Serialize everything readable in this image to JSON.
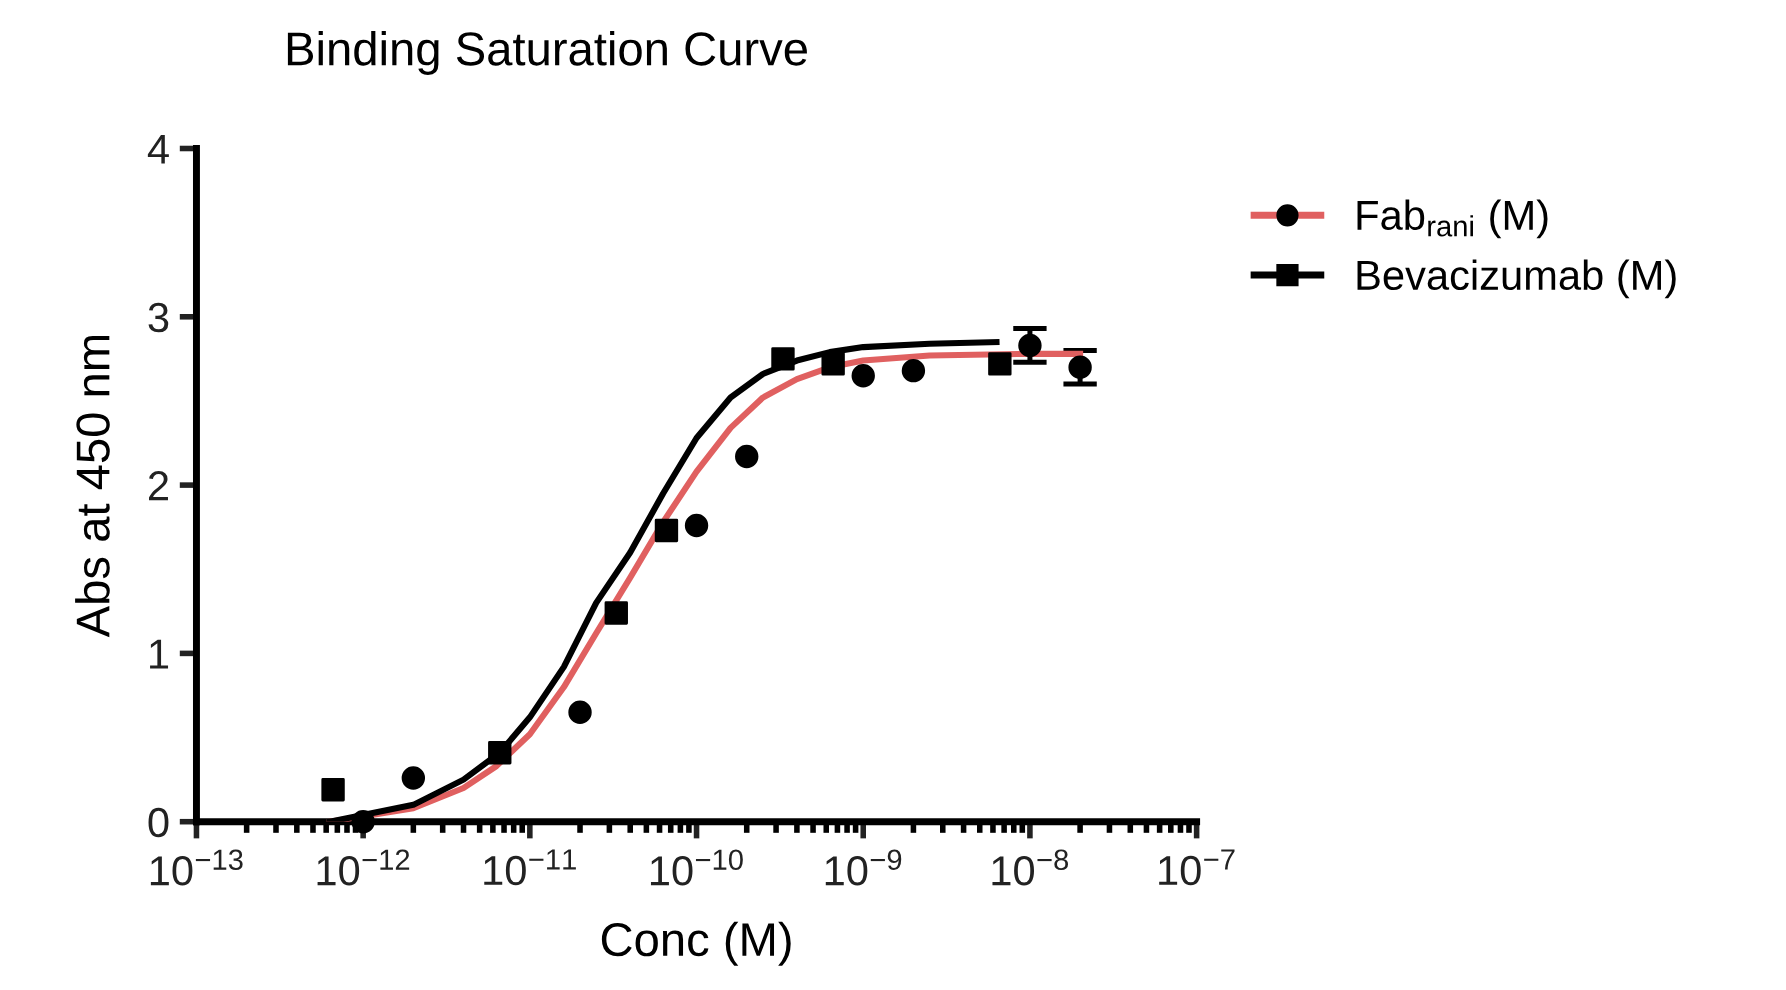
{
  "chart_data": {
    "type": "scatter",
    "title": "Binding Saturation Curve",
    "xlabel": "Conc (M)",
    "ylabel": "Abs at 450 nm",
    "log": "x",
    "xlim": [
      1e-13,
      1e-07
    ],
    "xticks": [
      {
        "value": 1e-13,
        "label": "10$^{−13}$"
      },
      {
        "value": 1e-12,
        "label": "10$^{−12}$"
      },
      {
        "value": 1e-11,
        "label": "10$^{−11}$"
      },
      {
        "value": 1e-10,
        "label": "10$^{−10}$"
      },
      {
        "value": 1e-09,
        "label": "10$^{−9}$"
      },
      {
        "value": 1e-08,
        "label": "10$^{−8}$"
      },
      {
        "value": 1e-07,
        "label": "10$^{−7}$"
      }
    ],
    "ylim": [
      0,
      4
    ],
    "yticks": [
      0,
      1,
      2,
      3,
      4
    ],
    "grid": false,
    "legend": "top right",
    "series": [
      {
        "name": "Fab$_{rani}$ (M)",
        "color": "#000000",
        "marker": "circle",
        "x": [
          1e-12,
          2e-12,
          2e-11,
          1e-10,
          2e-10,
          1e-09,
          2e-09,
          1e-08,
          2e-08
        ],
        "values": [
          0.0,
          0.26,
          0.65,
          1.76,
          2.17,
          2.65,
          2.68,
          2.83,
          2.7
        ],
        "errors": [
          null,
          null,
          null,
          null,
          null,
          null,
          null,
          0.1,
          0.1
        ]
      },
      {
        "type": "line",
        "color": "#e06060",
        "marker": "none",
        "x": [
          6.3e-13,
          2e-12,
          4e-12,
          6.3e-12,
          1e-11,
          1.6e-11,
          2.5e-11,
          4e-11,
          6.3e-11,
          1e-10,
          1.6e-10,
          2.5e-10,
          4e-10,
          6.3e-10,
          1e-09,
          2.5e-09,
          1e-08,
          2e-08
        ],
        "values": [
          0.0,
          0.08,
          0.2,
          0.33,
          0.52,
          0.8,
          1.12,
          1.45,
          1.78,
          2.08,
          2.34,
          2.52,
          2.63,
          2.7,
          2.74,
          2.77,
          2.78,
          2.78
        ]
      },
      {
        "name": "Bevacizumab (M)",
        "color": "#000000",
        "marker": "square",
        "x": [
          6.6e-13,
          6.6e-12,
          3.3e-11,
          6.6e-11,
          3.3e-10,
          6.6e-10,
          6.6e-09
        ],
        "values": [
          0.19,
          0.41,
          1.24,
          1.73,
          2.75,
          2.72,
          2.72
        ]
      },
      {
        "type": "line",
        "color": "#000000",
        "marker": "none",
        "x": [
          6.3e-13,
          2e-12,
          4e-12,
          6.6e-12,
          1e-11,
          1.6e-11,
          2.5e-11,
          4e-11,
          6.3e-11,
          1e-10,
          1.6e-10,
          2.5e-10,
          4e-10,
          6.3e-10,
          1e-09,
          2.5e-09,
          6.3e-09
        ],
        "values": [
          0.0,
          0.1,
          0.25,
          0.41,
          0.62,
          0.92,
          1.3,
          1.6,
          1.95,
          2.28,
          2.52,
          2.66,
          2.74,
          2.79,
          2.82,
          2.84,
          2.85
        ]
      }
    ]
  }
}
